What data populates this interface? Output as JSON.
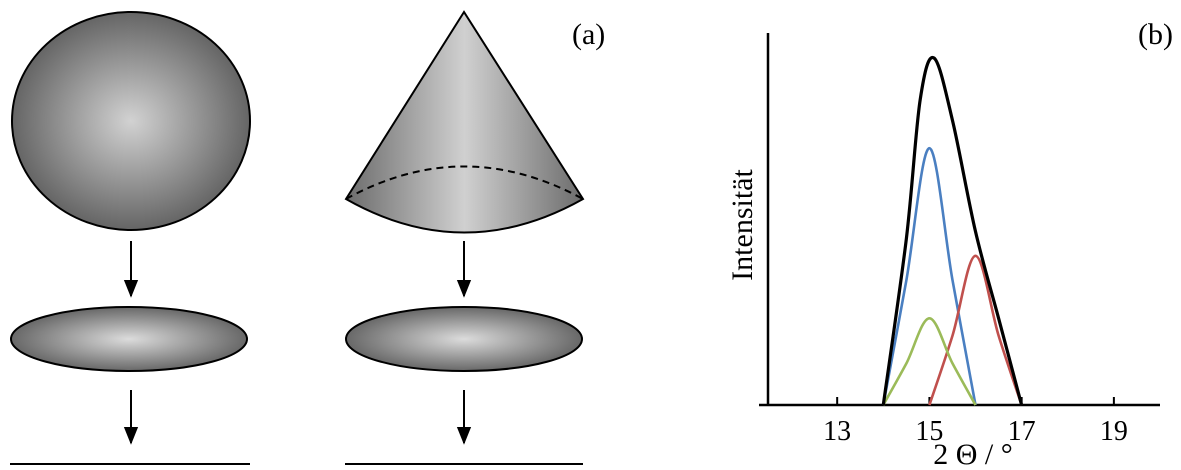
{
  "panel_a": {
    "label": "(a)"
  },
  "panel_b": {
    "label": "(b)"
  },
  "chart_data": {
    "type": "line",
    "title": "",
    "xlabel": "2 Θ / °",
    "ylabel": "Intensität",
    "xlim": [
      11.5,
      20
    ],
    "ylim": [
      0,
      1
    ],
    "x_ticks": [
      13,
      15,
      17,
      19
    ],
    "tick_labels": [
      "13",
      "15",
      "17",
      "19"
    ],
    "grid": false,
    "series": [
      {
        "color": "#000000",
        "values": [
          [
            14.0,
            0.0
          ],
          [
            14.5,
            0.48
          ],
          [
            14.8,
            0.88
          ],
          [
            15.1,
            1.0
          ],
          [
            15.5,
            0.82
          ],
          [
            16.0,
            0.5
          ],
          [
            16.5,
            0.25
          ],
          [
            17.0,
            0.0
          ]
        ]
      },
      {
        "color": "#4a7fc1",
        "values": [
          [
            14.0,
            0.0
          ],
          [
            14.5,
            0.36
          ],
          [
            15.0,
            0.74
          ],
          [
            15.5,
            0.36
          ],
          [
            16.0,
            0.0
          ]
        ]
      },
      {
        "color": "#c0504d",
        "values": [
          [
            15.0,
            0.0
          ],
          [
            15.5,
            0.2
          ],
          [
            16.0,
            0.43
          ],
          [
            16.5,
            0.2
          ],
          [
            17.0,
            0.0
          ]
        ]
      },
      {
        "color": "#9bbb59",
        "values": [
          [
            14.0,
            0.0
          ],
          [
            14.5,
            0.12
          ],
          [
            15.0,
            0.25
          ],
          [
            15.5,
            0.12
          ],
          [
            16.0,
            0.0
          ]
        ]
      }
    ]
  }
}
